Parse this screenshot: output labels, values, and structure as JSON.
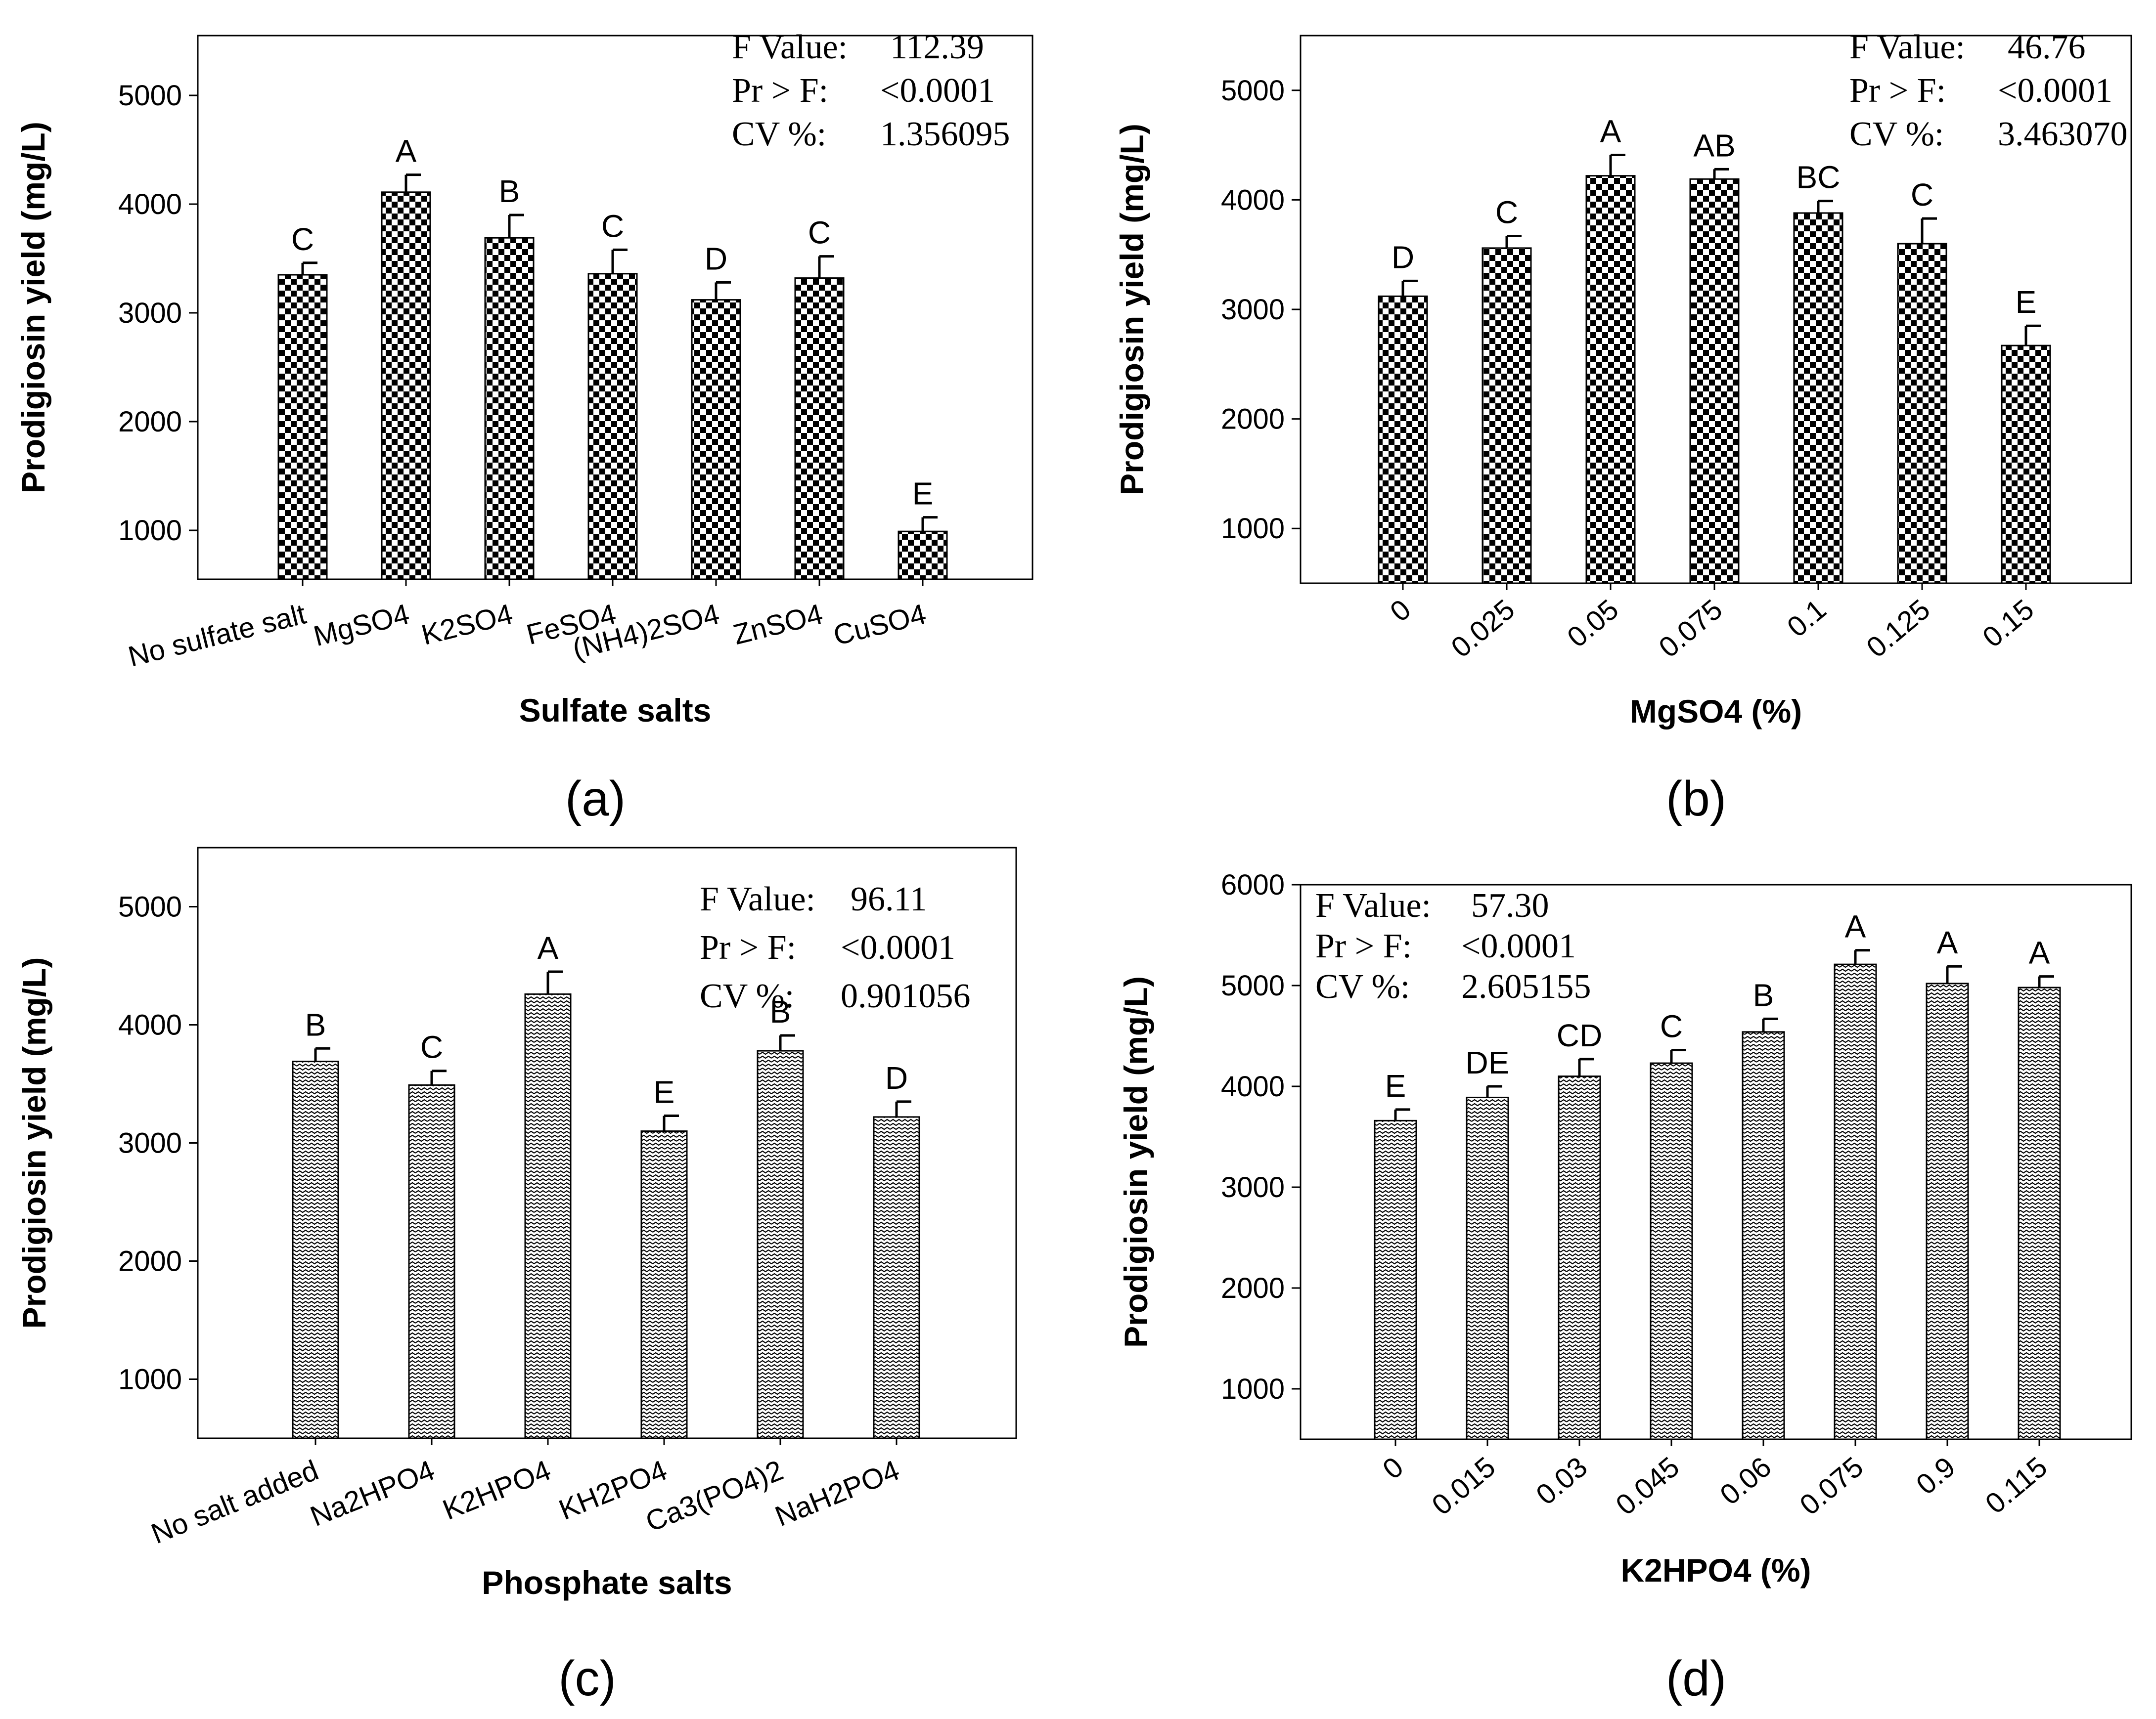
{
  "chart_data": [
    {
      "type": "bar",
      "panel_label": "(a)",
      "pattern": "checker",
      "categories": [
        "No sulfate salt",
        "MgSO4",
        "K2SO4",
        "FeSO4",
        "(NH4)2SO4",
        "ZnSO4",
        "CuSO4"
      ],
      "values": [
        3350,
        4110,
        3690,
        3360,
        3120,
        3320,
        990
      ],
      "errors": [
        110,
        160,
        210,
        220,
        160,
        200,
        130
      ],
      "letters": [
        "C",
        "A",
        "B",
        "C",
        "D",
        "C",
        "E"
      ],
      "xlabel": "Sulfate salts",
      "ylabel": "Prodigiosin yield (mg/L)",
      "ylim": [
        550,
        5550
      ],
      "yticks": [
        1000,
        2000,
        3000,
        4000,
        5000
      ],
      "stats": [
        {
          "label": "F Value:",
          "value": "112.39"
        },
        {
          "label": "Pr > F:",
          "value": "<0.0001"
        },
        {
          "label": "CV %:",
          "value": "1.356095"
        }
      ]
    },
    {
      "type": "bar",
      "panel_label": "(b)",
      "pattern": "checker",
      "categories": [
        "0",
        "0.025",
        "0.05",
        "0.075",
        "0.1",
        "0.125",
        "0.15"
      ],
      "values": [
        3120,
        3560,
        4220,
        4190,
        3880,
        3600,
        2670
      ],
      "errors": [
        140,
        110,
        190,
        90,
        110,
        230,
        180
      ],
      "letters": [
        "D",
        "C",
        "A",
        "AB",
        "BC",
        "C",
        "E"
      ],
      "xlabel": "MgSO4  (%)",
      "ylabel": "Prodigiosin yield (mg/L)",
      "ylim": [
        500,
        5500
      ],
      "yticks": [
        1000,
        2000,
        3000,
        4000,
        5000
      ],
      "stats": [
        {
          "label": "F Value:",
          "value": "46.76"
        },
        {
          "label": "Pr > F:",
          "value": "<0.0001"
        },
        {
          "label": "CV %:",
          "value": "3.463070"
        }
      ]
    },
    {
      "type": "bar",
      "panel_label": "(c)",
      "pattern": "wave",
      "categories": [
        "No salt added",
        "Na2HPO4",
        "K2HPO4",
        "KH2PO4",
        "Ca3(PO4)2",
        "NaH2PO4"
      ],
      "values": [
        3690,
        3490,
        4260,
        3100,
        3780,
        3220
      ],
      "errors": [
        110,
        120,
        190,
        130,
        130,
        130
      ],
      "letters": [
        "B",
        "C",
        "A",
        "E",
        "B",
        "D"
      ],
      "xlabel": "Phosphate salts",
      "ylabel": "Prodigiosin yield (mg/L)",
      "ylim": [
        500,
        5500
      ],
      "yticks": [
        1000,
        2000,
        3000,
        4000,
        5000
      ],
      "stats": [
        {
          "label": "F Value:",
          "value": "96.11"
        },
        {
          "label": "Pr > F:",
          "value": "<0.0001"
        },
        {
          "label": "CV %:",
          "value": "0.901056"
        }
      ]
    },
    {
      "type": "bar",
      "panel_label": "(d)",
      "pattern": "wave",
      "categories": [
        "0",
        "0.015",
        "0.03",
        "0.045",
        "0.06",
        "0.075",
        "0.9",
        "0.115"
      ],
      "values": [
        3660,
        3890,
        4100,
        4230,
        4540,
        5210,
        5020,
        4980
      ],
      "errors": [
        110,
        110,
        170,
        130,
        130,
        140,
        170,
        110
      ],
      "letters": [
        "E",
        "DE",
        "CD",
        "C",
        "B",
        "A",
        "A",
        "A"
      ],
      "xlabel": "K2HPO4 (%)",
      "ylabel": "Prodigiosin yield (mg/L)",
      "ylim": [
        500,
        6000
      ],
      "yticks": [
        1000,
        2000,
        3000,
        4000,
        5000,
        6000
      ],
      "stats": [
        {
          "label": "F Value:",
          "value": "57.30"
        },
        {
          "label": "Pr > F:",
          "value": "<0.0001"
        },
        {
          "label": "CV %:",
          "value": "2.605155"
        }
      ]
    }
  ]
}
